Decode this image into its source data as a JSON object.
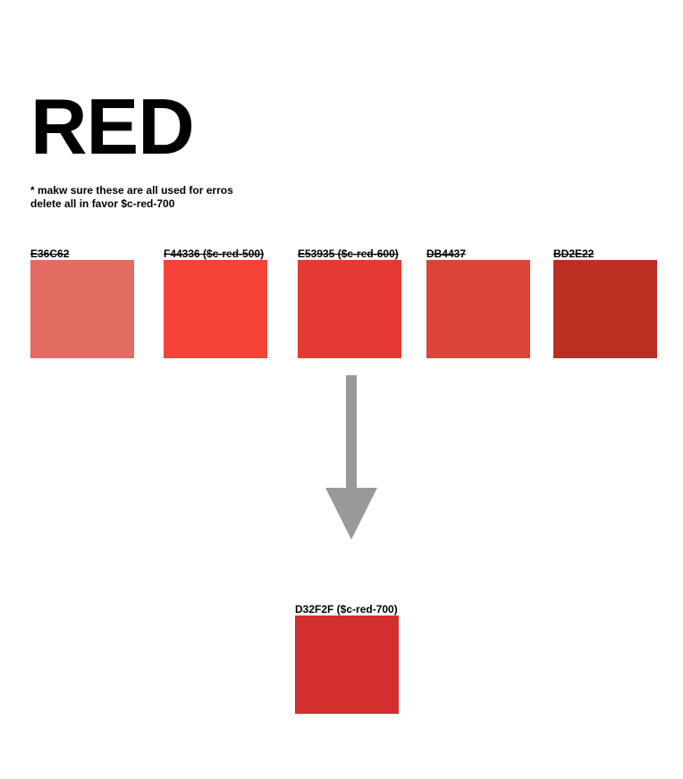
{
  "title": "RED",
  "note": {
    "line1": "* makw sure these are all used for erros",
    "line2": "delete all in favor $c-red-700"
  },
  "deprecated_swatches": [
    {
      "label": "E36C62",
      "color": "#E36C62"
    },
    {
      "label": "F44336 ($c-red-500)",
      "color": "#F44336"
    },
    {
      "label": "E53935 ($c-red-600)",
      "color": "#E53935"
    },
    {
      "label": "DB4437",
      "color": "#DB4437"
    },
    {
      "label": "BD2E22",
      "color": "#BD2E22"
    }
  ],
  "arrow": {
    "color": "#999999",
    "icon": "down-arrow-icon"
  },
  "target_swatch": {
    "label": "D32F2F ($c-red-700)",
    "color": "#D32F2F"
  }
}
